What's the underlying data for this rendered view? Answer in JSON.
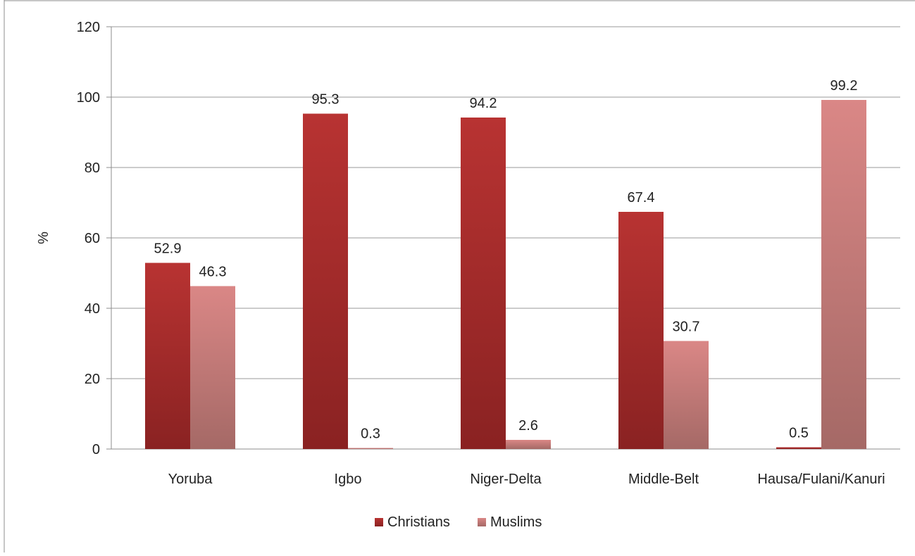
{
  "chart_data": {
    "type": "bar",
    "categories": [
      "Yoruba",
      "Igbo",
      "Niger-Delta",
      "Middle-Belt",
      "Hausa/Fulani/Kanuri"
    ],
    "series": [
      {
        "name": "Christians",
        "values": [
          52.9,
          95.3,
          94.2,
          67.4,
          0.5
        ],
        "color": "#a8282b"
      },
      {
        "name": "Muslims",
        "values": [
          46.3,
          0.3,
          2.6,
          30.7,
          99.2
        ],
        "color": "#c96a6c"
      }
    ],
    "data_labels": [
      [
        "52.9",
        "95.3",
        "94.2",
        "67.4",
        "0.5"
      ],
      [
        "46.3",
        "0.3",
        "2.6",
        "30.7",
        "99.2"
      ]
    ],
    "ylabel": "%",
    "ylim": [
      0,
      120
    ],
    "yticks": [
      "0",
      "20",
      "40",
      "60",
      "80",
      "100",
      "120"
    ],
    "grid": true,
    "legend_position": "bottom"
  }
}
